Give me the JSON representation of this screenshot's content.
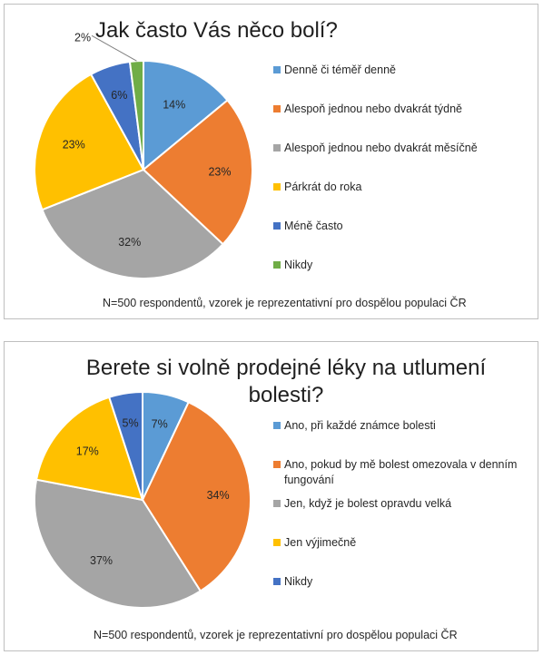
{
  "chart_data": [
    {
      "type": "pie",
      "title": "Jak často Vás něco bolí?",
      "categories": [
        "Denně či téměř denně",
        "Alespoň jednou nebo dvakrát týdně",
        "Alespoň jednou nebo dvakrát měsíčně",
        "Párkrát do roka",
        "Méně často",
        "Nikdy"
      ],
      "values": [
        14,
        23,
        32,
        23,
        6,
        2
      ],
      "labels": [
        "14%",
        "23%",
        "32%",
        "23%",
        "6%",
        "2%"
      ],
      "colors": [
        "#5b9bd5",
        "#ed7d31",
        "#a5a5a5",
        "#ffc000",
        "#4472c4",
        "#70ad47"
      ],
      "legend_position": "right",
      "note": "N=500 respondentů, vzorek je reprezentativní pro dospělou populaci ČR"
    },
    {
      "type": "pie",
      "title": "Berete si volně prodejné léky na utlumení bolesti?",
      "categories": [
        "Ano, při každé známce bolesti",
        "Ano, pokud by mě bolest omezovala v denním fungování",
        "Jen, když je bolest opravdu velká",
        "Jen výjimečně",
        "Nikdy"
      ],
      "values": [
        7,
        34,
        37,
        17,
        5
      ],
      "labels": [
        "7%",
        "34%",
        "37%",
        "17%",
        "5%"
      ],
      "colors": [
        "#5b9bd5",
        "#ed7d31",
        "#a5a5a5",
        "#ffc000",
        "#4472c4"
      ],
      "legend_position": "right",
      "note": "N=500 respondentů, vzorek je reprezentativní pro dospělou populaci ČR"
    }
  ]
}
